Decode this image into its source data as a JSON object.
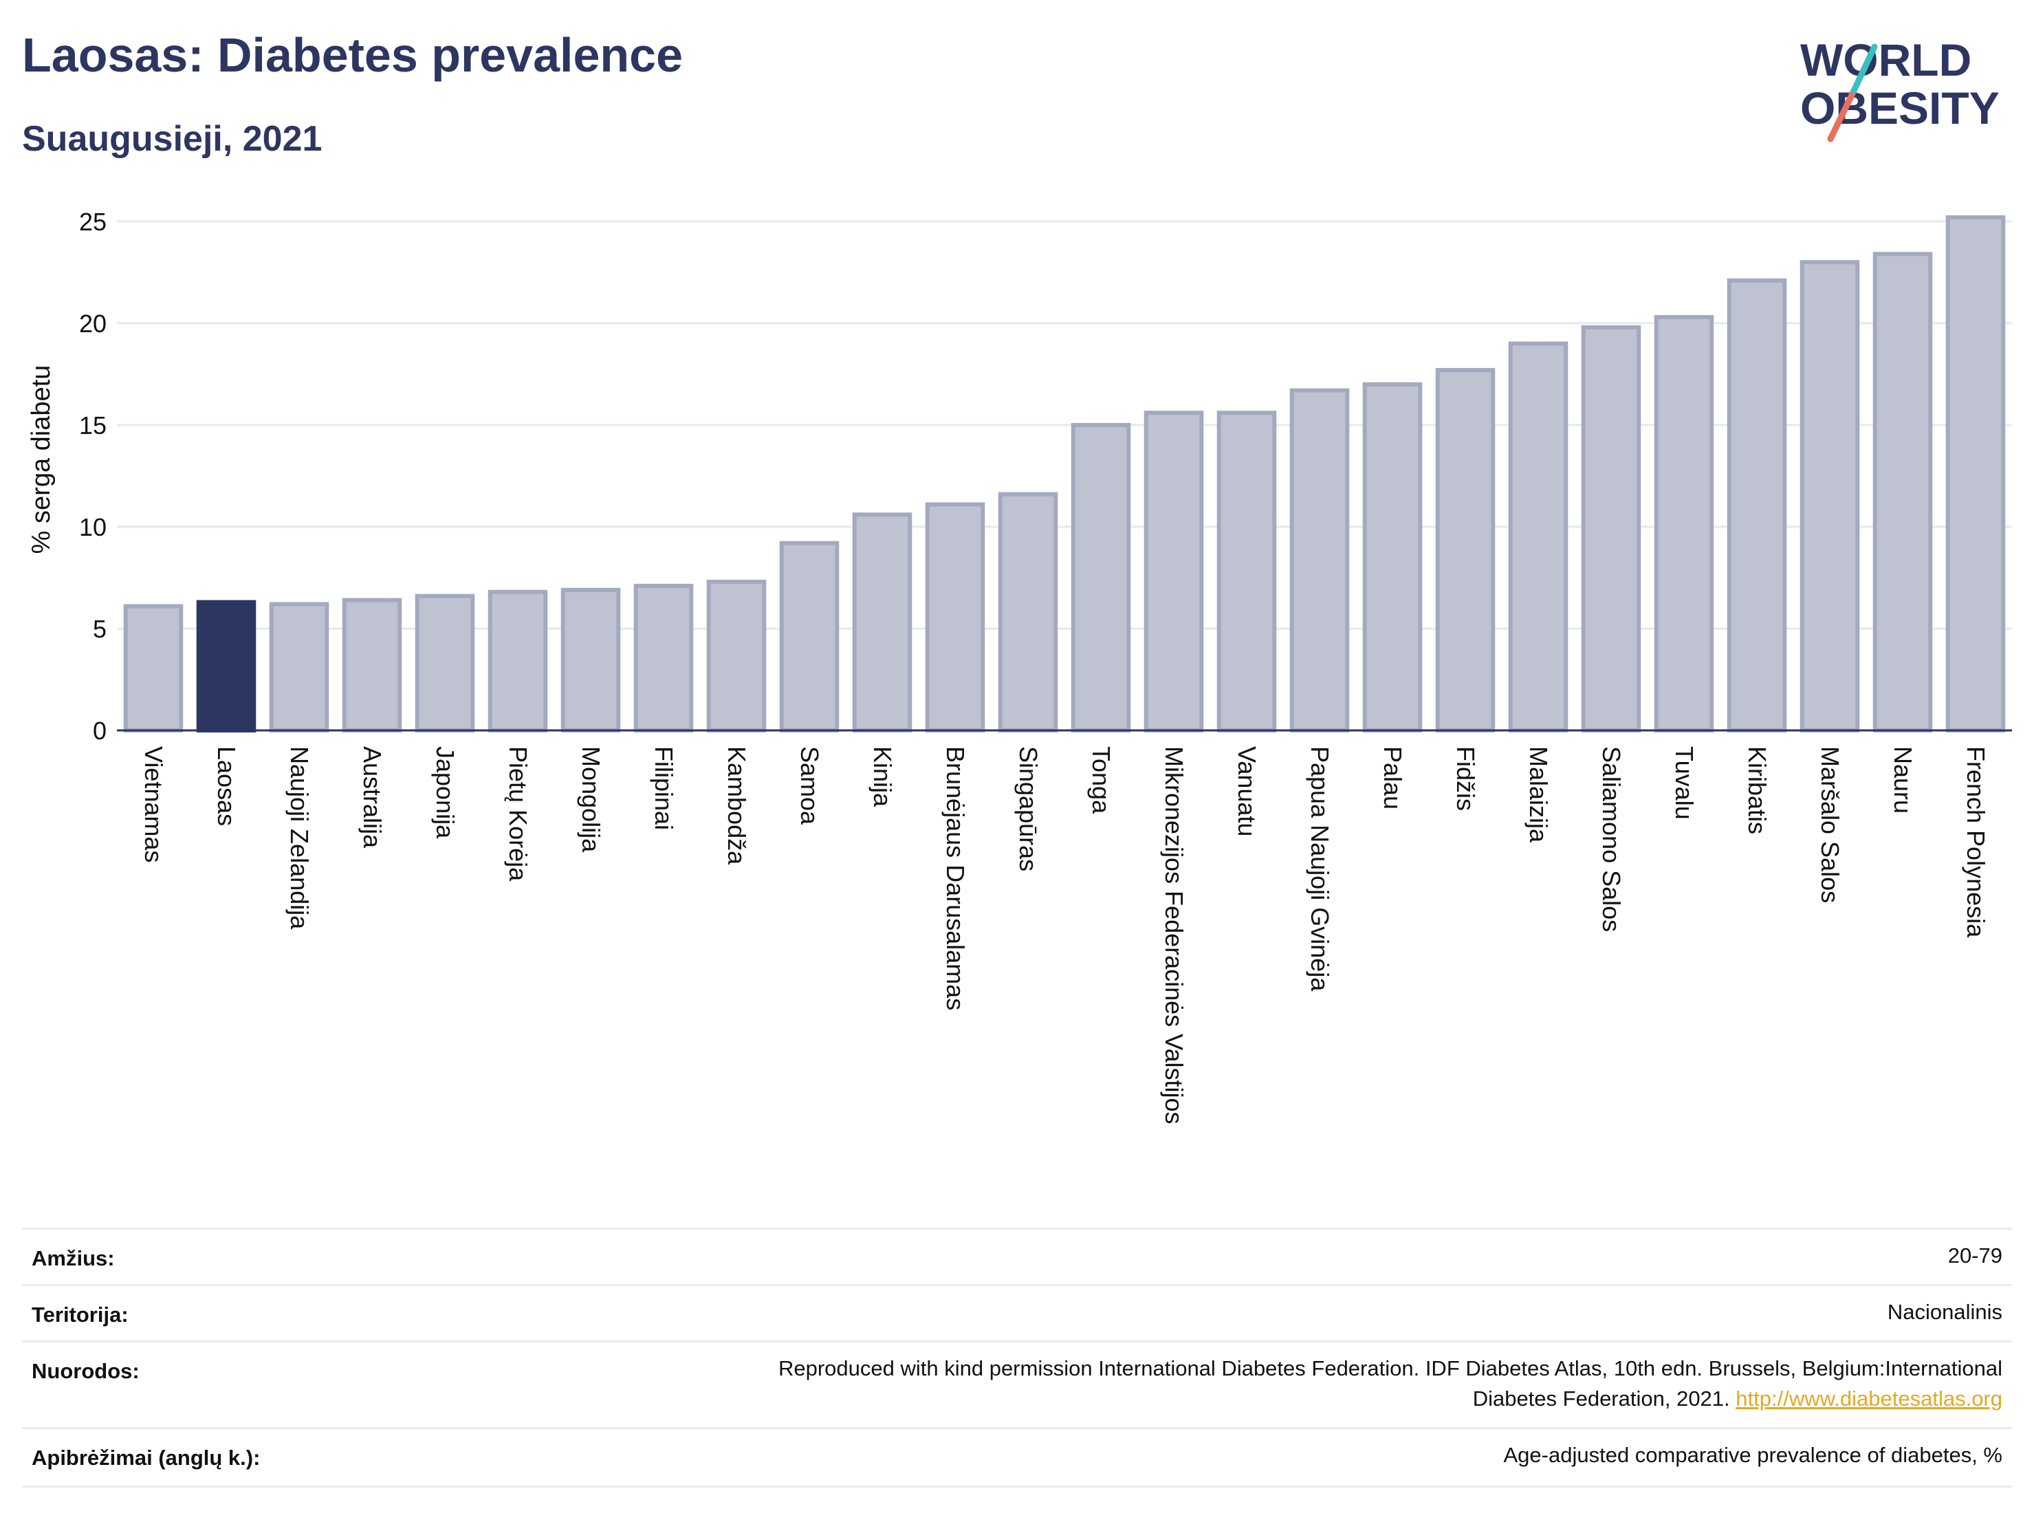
{
  "header": {
    "title": "Laosas: Diabetes prevalence",
    "subtitle": "Suaugusieji, 2021"
  },
  "logo": {
    "line1": "WORLD",
    "line2": "OBESITY",
    "icon": "world-obesity-logo"
  },
  "chart_data": {
    "type": "bar",
    "ylabel": "% serga diabetu",
    "xlabel": "",
    "ylim": [
      0,
      25.5
    ],
    "yticks": [
      0,
      5,
      10,
      15,
      20,
      25
    ],
    "grid": true,
    "highlight": "Laosas",
    "colors": {
      "bar": "#bfc3d1",
      "bar_border": "#a3a9bf",
      "highlight": "#2d3561",
      "grid": "#e6e9ee"
    },
    "categories": [
      "Vietnamas",
      "Laosas",
      "Naujoji Zelandija",
      "Australija",
      "Japonija",
      "Pietų Korėja",
      "Mongolija",
      "Filipinai",
      "Kambodža",
      "Samoa",
      "Kinija",
      "Brunėjaus Darusalamas",
      "Singapūras",
      "Tonga",
      "Mikronezijos Federacinės Valstijos",
      "Vanuatu",
      "Papua Naujoji Gvinėja",
      "Palau",
      "Fidžis",
      "Malaizija",
      "Saliamono Salos",
      "Tuvalu",
      "Kiribatis",
      "Maršalo Salos",
      "Nauru",
      "French Polynesia"
    ],
    "values": [
      6.1,
      6.3,
      6.2,
      6.4,
      6.6,
      6.8,
      6.9,
      7.1,
      7.3,
      9.2,
      10.6,
      11.1,
      11.6,
      15.0,
      15.6,
      15.6,
      16.7,
      17.0,
      17.7,
      19.0,
      19.8,
      20.3,
      22.1,
      23.0,
      23.4,
      25.2
    ]
  },
  "info": {
    "rows": [
      {
        "label": "Amžius:",
        "value": "20-79"
      },
      {
        "label": "Teritorija:",
        "value": "Nacionalinis"
      },
      {
        "label": "Nuorodos:",
        "value_line1": "Reproduced with kind permission International Diabetes Federation.  IDF Diabetes Atlas, 10th edn. Brussels, Belgium:International",
        "value_line2": "Diabetes Federation, 2021.",
        "link": "http://www.diabetesatlas.org"
      },
      {
        "label": "Apibrėžimai (anglų k.):",
        "value": "Age-adjusted comparative prevalence of diabetes, %"
      }
    ]
  }
}
